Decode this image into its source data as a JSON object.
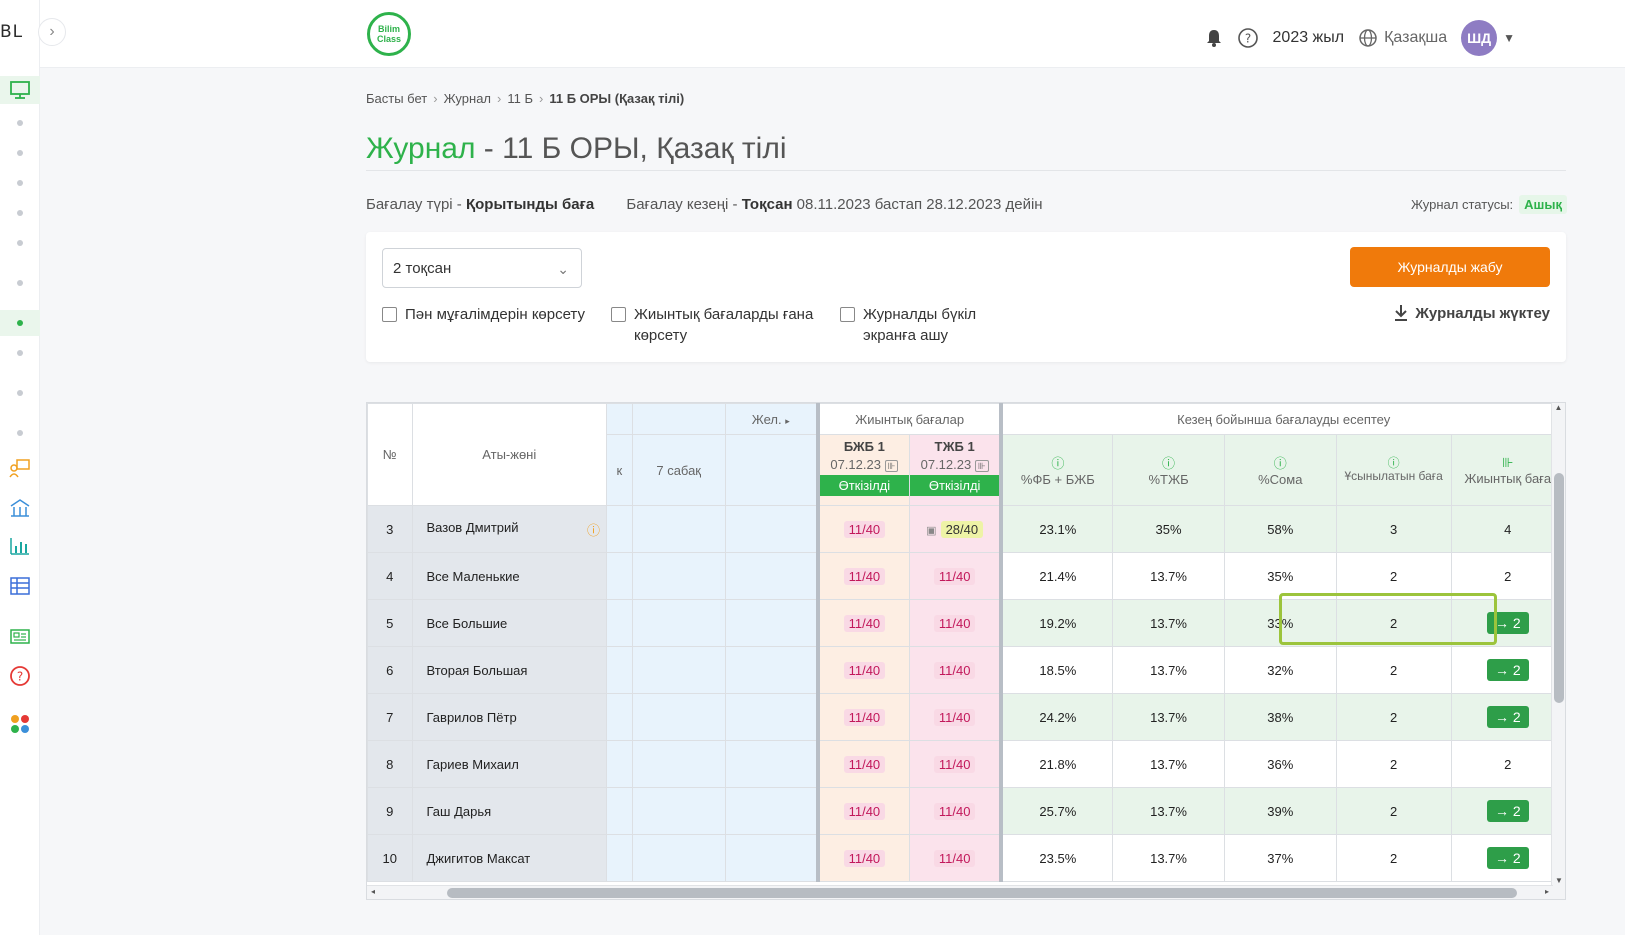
{
  "sidebar": {
    "logo": "BL",
    "toggle": "›"
  },
  "header": {
    "logo": "Bilim Class",
    "year": "2023 жыл",
    "language": "Қазақша",
    "avatar": "ШД"
  },
  "breadcrumb": [
    "Басты бет",
    "Журнал",
    "11 Б",
    "11 Б ОРЫ (Қазақ тілі)"
  ],
  "page": {
    "title_prefix": "Журнал",
    "title_rest": " - 11 Б ОРЫ, Қазақ тілі"
  },
  "meta": {
    "assessment_type_label": "Бағалау түрі - ",
    "assessment_type": "Қорытынды баға",
    "period_label": "Бағалау кезеңі - ",
    "period": "Тоқсан",
    "period_range": " 08.11.2023 бастап 28.12.2023 дейін",
    "status_label": "Журнал статусы:",
    "status": "Ашық"
  },
  "filters": {
    "quarter": "2 тоқсан",
    "show_teachers": "Пән мұғалімдерін көрсету",
    "show_summative": "Жиынтық бағаларды ғана көрсету",
    "fullscreen": "Журналды бүкіл экранға ашу",
    "close_button": "Журналды жабу",
    "download": "Журналды жүктеу"
  },
  "table": {
    "headers": {
      "num": "№",
      "name": "Аты-жөні",
      "lesson_hidden": "к",
      "lesson": "7 сабақ",
      "next": "Жел.",
      "summative_group": "Жиынтық бағалар",
      "calc_group": "Кезең бойынша бағалауды есептеу",
      "bjb": "БЖБ 1",
      "tjb": "ТЖБ 1",
      "bjb_date": "07.12.23",
      "tjb_date": "07.12.23",
      "passed": "Өткізілді",
      "pct_fo_bjb": "%ФБ + БЖБ",
      "pct_tjb": "%ТЖБ",
      "pct_sum": "%Сома",
      "recommended": "Ұсынылатын баға",
      "final": "Жиынтық баға"
    },
    "rows": [
      {
        "num": "3",
        "name": "Вазов Дмитрий",
        "bjb": "11/40",
        "tjb": "28/40",
        "p1": "23.1%",
        "p2": "35%",
        "p3": "58%",
        "rec": "3",
        "fin": "4",
        "btn": false
      },
      {
        "num": "4",
        "name": "Все Маленькие",
        "bjb": "11/40",
        "tjb": "11/40",
        "p1": "21.4%",
        "p2": "13.7%",
        "p3": "35%",
        "rec": "2",
        "fin": "2",
        "btn": false
      },
      {
        "num": "5",
        "name": "Все Большие",
        "bjb": "11/40",
        "tjb": "11/40",
        "p1": "19.2%",
        "p2": "13.7%",
        "p3": "33%",
        "rec": "2",
        "fin": "→ 2",
        "btn": true
      },
      {
        "num": "6",
        "name": "Вторая Большая",
        "bjb": "11/40",
        "tjb": "11/40",
        "p1": "18.5%",
        "p2": "13.7%",
        "p3": "32%",
        "rec": "2",
        "fin": "→ 2",
        "btn": true
      },
      {
        "num": "7",
        "name": "Гаврилов Пётр",
        "bjb": "11/40",
        "tjb": "11/40",
        "p1": "24.2%",
        "p2": "13.7%",
        "p3": "38%",
        "rec": "2",
        "fin": "→ 2",
        "btn": true
      },
      {
        "num": "8",
        "name": "Гариев Михаил",
        "bjb": "11/40",
        "tjb": "11/40",
        "p1": "21.8%",
        "p2": "13.7%",
        "p3": "36%",
        "rec": "2",
        "fin": "2",
        "btn": false
      },
      {
        "num": "9",
        "name": "Гаш Дарья",
        "bjb": "11/40",
        "tjb": "11/40",
        "p1": "25.7%",
        "p2": "13.7%",
        "p3": "39%",
        "rec": "2",
        "fin": "→ 2",
        "btn": true
      },
      {
        "num": "10",
        "name": "Джигитов Максат",
        "bjb": "11/40",
        "tjb": "11/40",
        "p1": "23.5%",
        "p2": "13.7%",
        "p3": "37%",
        "rec": "2",
        "fin": "→ 2",
        "btn": true
      }
    ]
  },
  "colors": {
    "accent": "#2eb24b",
    "orange": "#f07a0b",
    "highlight": "#9cc43c"
  }
}
